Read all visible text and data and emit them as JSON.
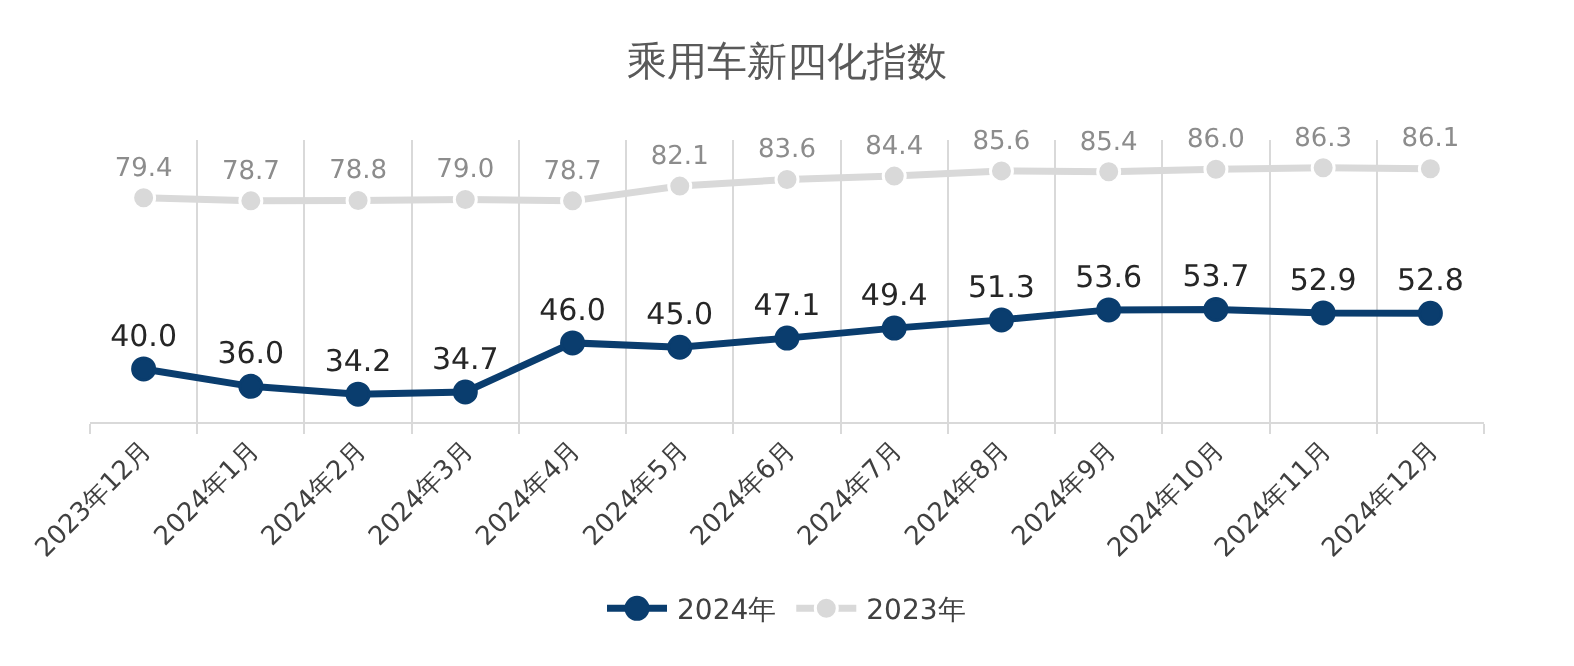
{
  "chart_data": {
    "type": "line",
    "title": "乘用车新四化指数",
    "categories": [
      "2023年12月",
      "2024年1月",
      "2024年2月",
      "2024年3月",
      "2024年4月",
      "2024年5月",
      "2024年6月",
      "2024年7月",
      "2024年8月",
      "2024年9月",
      "2024年10月",
      "2024年11月",
      "2024年12月"
    ],
    "series": [
      {
        "name": "2024年",
        "color": "#0a3d6e",
        "values": [
          40.0,
          36.0,
          34.2,
          34.7,
          46.0,
          45.0,
          47.1,
          49.4,
          51.3,
          53.6,
          53.7,
          52.9,
          52.8
        ],
        "value_labels": [
          "40.0",
          "36.0",
          "34.2",
          "34.7",
          "46.0",
          "45.0",
          "47.1",
          "49.4",
          "51.3",
          "53.6",
          "53.7",
          "52.9",
          "52.8"
        ]
      },
      {
        "name": "2023年",
        "color": "#d9d9d9",
        "values": [
          79.4,
          78.7,
          78.8,
          79.0,
          78.7,
          82.1,
          83.6,
          84.4,
          85.6,
          85.4,
          86.0,
          86.3,
          86.1
        ],
        "value_labels": [
          "79.4",
          "78.7",
          "78.8",
          "79.0",
          "78.7",
          "82.1",
          "83.6",
          "84.4",
          "85.6",
          "85.4",
          "86.0",
          "86.3",
          "86.1"
        ]
      }
    ],
    "grid": "x",
    "legend": "bottom",
    "marker": "circle",
    "line_style": "solid",
    "tick_labels": "x"
  }
}
